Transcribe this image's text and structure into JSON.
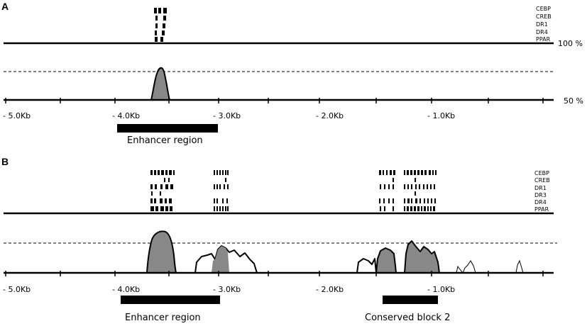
{
  "panel_a": {
    "letter": "A",
    "tf_labels": [
      "CEBP",
      "CREB",
      "DR1",
      "DR4",
      "PPAR"
    ],
    "pct_top": "100 %",
    "pct_bottom": "50 %",
    "ticks": [
      "- 5.0Kb",
      "- 4.0Kb",
      "- 3.0Kb",
      "- 2.0Kb",
      "- 1.0Kb"
    ],
    "region_label": "Enhancer region"
  },
  "panel_b": {
    "letter": "B",
    "tf_labels": [
      "CEBP",
      "CREB",
      "DR1",
      "DR3",
      "DR4",
      "PPAR"
    ],
    "ticks": [
      "- 5.0Kb",
      "- 4.0Kb",
      "- 3.0Kb",
      "- 2.0Kb",
      "- 1.0Kb"
    ],
    "region_label_1": "Enhancer region",
    "region_label_2": "Conserved block 2"
  },
  "colors": {
    "peak_fill": "#888888",
    "line": "#000000"
  }
}
